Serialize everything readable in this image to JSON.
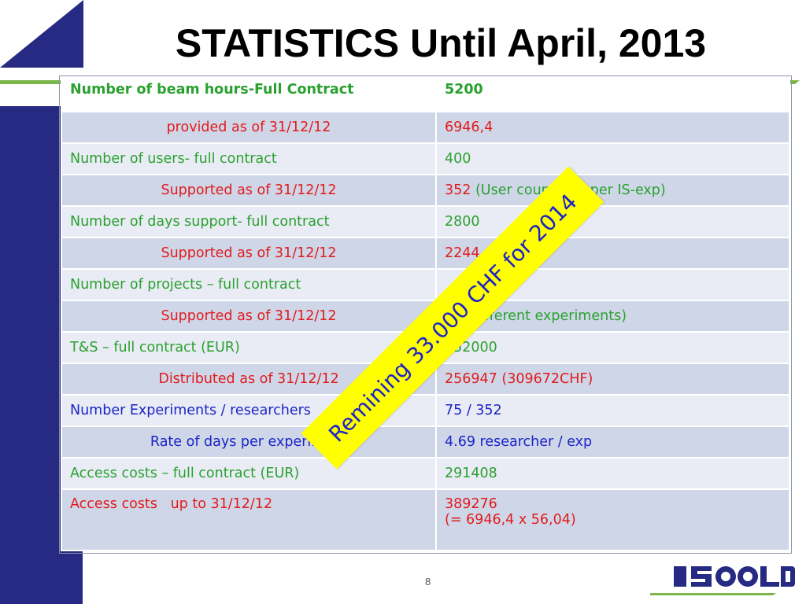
{
  "title": "STATISTICS Until April, 2013",
  "header_row": {
    "label": "Number of beam hours-Full Contract",
    "value": "5200"
  },
  "rows": [
    {
      "label": "provided as of 31/12/12",
      "value": "6946,4",
      "value_note": ""
    },
    {
      "label": "Number of users- full contract",
      "value": "400",
      "value_note": ""
    },
    {
      "label": "Supported as of 31/12/12",
      "value": "352",
      "value_note": " (User counted 1 per IS-exp)"
    },
    {
      "label": "Number of days support- full contract",
      "value": "2800",
      "value_note": ""
    },
    {
      "label": "Supported as of 31/12/12",
      "value": "2244",
      "value_note": ""
    },
    {
      "label": "Number of projects – full contract",
      "value": "",
      "value_note": ""
    },
    {
      "label": "Supported as of 31/12/12",
      "value": "75",
      "value_note": " (different experiments)"
    },
    {
      "label": "T&S – full contract (EUR)",
      "value": "252000",
      "value_note": ""
    },
    {
      "label": "Distributed as of 31/12/12",
      "value": "256947 (309672CHF)",
      "value_note": ""
    },
    {
      "label": "Number Experiments / researchers",
      "value": "75 / 352",
      "value_note": ""
    },
    {
      "label": "Rate of days per experiment",
      "value": "4.69 researcher / exp",
      "value_note": ""
    },
    {
      "label": "Access costs – full contract (EUR)",
      "value": "291408",
      "value_note": ""
    },
    {
      "label": "Access costs   up to 31/12/12",
      "value": "389276",
      "value_note": "(= 6946,4 x 56,04)"
    }
  ],
  "stamp_text": "Remining 33.000 CHF for 2014",
  "page_number": "8",
  "logo_text": "ISOLDE",
  "colors": {
    "accent_navy": "#262a82",
    "accent_green": "#7ab648",
    "text_red": "#e01c1c",
    "text_green": "#2aa12f",
    "text_blue": "#1b24c9",
    "stamp_yellow": "#ffff00"
  }
}
